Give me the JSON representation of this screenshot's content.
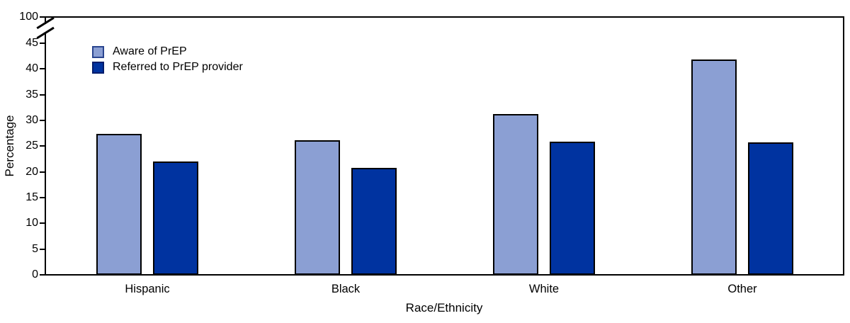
{
  "chart_data": {
    "type": "bar",
    "title": "",
    "xlabel": "Race/Ethnicity",
    "ylabel": "Percentage",
    "categories": [
      "Hispanic",
      "Black",
      "White",
      "Other"
    ],
    "series": [
      {
        "name": "Aware of PrEP",
        "fill": "#8B9FD3",
        "swatch_border": "#2A458F",
        "values": [
          27.4,
          26.2,
          31.3,
          41.9
        ]
      },
      {
        "name": "Referred to PrEP provider",
        "fill": "#0033A0",
        "swatch_border": "#001C6B",
        "values": [
          22.0,
          20.8,
          25.9,
          25.7
        ]
      }
    ],
    "y_ticks": [
      0,
      5,
      10,
      15,
      20,
      25,
      30,
      35,
      40,
      45,
      100
    ],
    "ylim": [
      0,
      45
    ],
    "y_axis_break": {
      "between": [
        45,
        100
      ],
      "shown_top_value": 100
    },
    "bar_outline": "#000000",
    "grid": false,
    "legend_position": "upper-left-inside"
  }
}
